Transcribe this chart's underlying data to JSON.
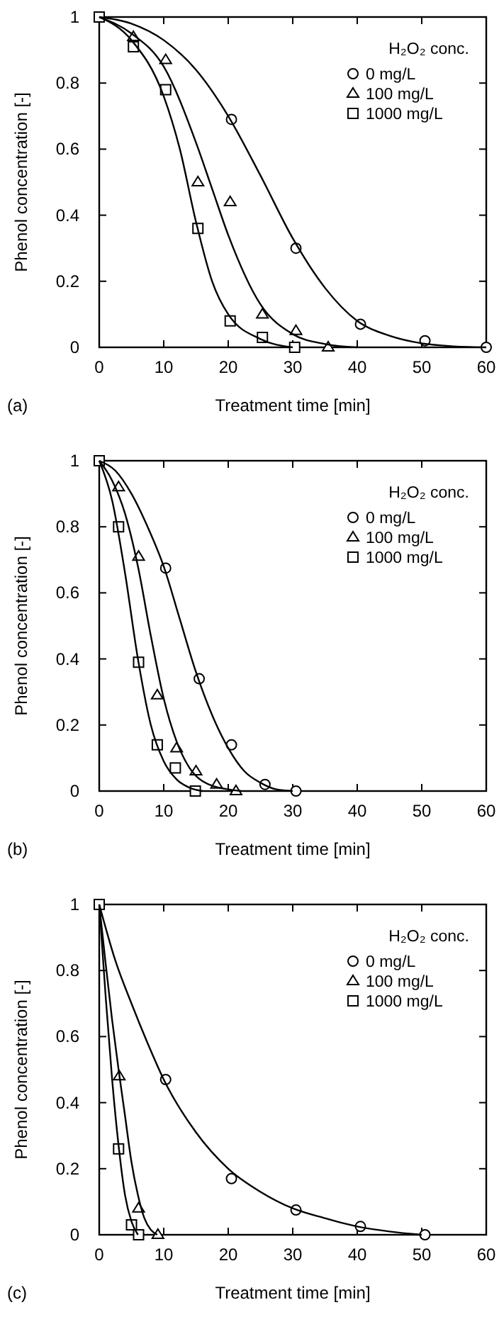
{
  "chart_data": [
    {
      "type": "scatter",
      "xlabel": "Treatment time [min]",
      "ylabel": "Phenol concentration [-]",
      "legend_title": "H₂O₂ conc.",
      "legend": "top right",
      "grid": false,
      "annotations": [
        "(a)"
      ],
      "xlim": [
        0,
        60
      ],
      "ylim": [
        0,
        1
      ],
      "xticks": [
        0,
        10,
        20,
        30,
        40,
        50,
        60
      ],
      "yticks": [
        0,
        0.2,
        0.4,
        0.6,
        0.8,
        1
      ],
      "series": [
        {
          "name": "0 mg/L",
          "type": "scatter",
          "marker": "circle",
          "color": "#000000",
          "x": [
            20.5,
            30.5,
            40.5,
            50.5,
            60
          ],
          "values": [
            0.69,
            0.3,
            0.07,
            0.02,
            0
          ]
        },
        {
          "name": "100 mg/L",
          "type": "scatter",
          "marker": "triangle",
          "color": "#000000",
          "x": [
            5.3,
            10.3,
            15.3,
            20.3,
            25.3,
            30.5,
            35.5
          ],
          "values": [
            0.94,
            0.87,
            0.5,
            0.44,
            0.1,
            0.05,
            0
          ]
        },
        {
          "name": "1000 mg/L",
          "type": "scatter",
          "marker": "square",
          "color": "#000000",
          "x": [
            0,
            5.3,
            10.3,
            15.3,
            20.3,
            25.3,
            30.3
          ],
          "values": [
            1,
            0.91,
            0.78,
            0.36,
            0.08,
            0.03,
            0
          ]
        },
        {
          "type": "line",
          "color": "#000000",
          "x": [
            0,
            5,
            10,
            15,
            20,
            25,
            30,
            35,
            40,
            45,
            50,
            55,
            60
          ],
          "values": [
            1,
            0.98,
            0.93,
            0.84,
            0.7,
            0.52,
            0.33,
            0.18,
            0.08,
            0.035,
            0.012,
            0.003,
            0
          ]
        },
        {
          "type": "line",
          "color": "#000000",
          "x": [
            0,
            5,
            10,
            15,
            17.5,
            20,
            25,
            30,
            35,
            40
          ],
          "values": [
            1,
            0.95,
            0.85,
            0.62,
            0.48,
            0.34,
            0.13,
            0.04,
            0.01,
            0
          ]
        },
        {
          "type": "line",
          "color": "#000000",
          "x": [
            0,
            5,
            10,
            12.5,
            15,
            17.5,
            20,
            25,
            30
          ],
          "values": [
            1,
            0.93,
            0.76,
            0.6,
            0.38,
            0.2,
            0.1,
            0.025,
            0
          ]
        }
      ]
    },
    {
      "type": "scatter",
      "xlabel": "Treatment time [min]",
      "ylabel": "Phenol concentration [-]",
      "legend_title": "H₂O₂ conc.",
      "legend": "top right",
      "grid": false,
      "annotations": [
        "(b)"
      ],
      "xlim": [
        0,
        60
      ],
      "ylim": [
        0,
        1
      ],
      "xticks": [
        0,
        10,
        20,
        30,
        40,
        50,
        60
      ],
      "yticks": [
        0,
        0.2,
        0.4,
        0.6,
        0.8,
        1
      ],
      "series": [
        {
          "name": "0 mg/L",
          "type": "scatter",
          "marker": "circle",
          "color": "#000000",
          "x": [
            10.3,
            15.5,
            20.5,
            25.7,
            30.5
          ],
          "values": [
            0.675,
            0.34,
            0.14,
            0.02,
            0
          ]
        },
        {
          "name": "100 mg/L",
          "type": "scatter",
          "marker": "triangle",
          "color": "#000000",
          "x": [
            3,
            6.1,
            9,
            12,
            15,
            18.2,
            21.2
          ],
          "values": [
            0.92,
            0.71,
            0.29,
            0.13,
            0.06,
            0.02,
            0
          ]
        },
        {
          "name": "1000 mg/L",
          "type": "scatter",
          "marker": "square",
          "color": "#000000",
          "x": [
            0,
            3,
            6.1,
            9,
            11.8,
            14.9
          ],
          "values": [
            1,
            0.8,
            0.39,
            0.14,
            0.07,
            0
          ]
        },
        {
          "type": "line",
          "color": "#000000",
          "x": [
            0,
            2.5,
            5,
            7.5,
            10,
            12.5,
            15,
            17.5,
            20,
            22.5,
            25,
            27.5,
            30
          ],
          "values": [
            1,
            0.97,
            0.9,
            0.8,
            0.68,
            0.52,
            0.36,
            0.23,
            0.13,
            0.06,
            0.025,
            0.005,
            0
          ]
        },
        {
          "type": "line",
          "color": "#000000",
          "x": [
            0,
            2,
            4,
            6,
            8,
            10,
            12,
            14,
            16,
            20,
            22
          ],
          "values": [
            1,
            0.94,
            0.84,
            0.68,
            0.47,
            0.28,
            0.15,
            0.07,
            0.03,
            0.005,
            0
          ]
        },
        {
          "type": "line",
          "color": "#000000",
          "x": [
            0,
            2,
            4,
            6,
            8,
            10,
            12,
            14,
            16
          ],
          "values": [
            1,
            0.88,
            0.66,
            0.4,
            0.2,
            0.09,
            0.035,
            0.01,
            0
          ]
        }
      ]
    },
    {
      "type": "scatter",
      "xlabel": "Treatment time [min]",
      "ylabel": "Phenol concentration [-]",
      "legend_title": "H₂O₂ conc.",
      "legend": "top right",
      "grid": false,
      "annotations": [
        "(c)"
      ],
      "xlim": [
        0,
        60
      ],
      "ylim": [
        0,
        1
      ],
      "xticks": [
        0,
        10,
        20,
        30,
        40,
        50,
        60
      ],
      "yticks": [
        0,
        0.2,
        0.4,
        0.6,
        0.8,
        1
      ],
      "series": [
        {
          "name": "0 mg/L",
          "type": "scatter",
          "marker": "circle",
          "color": "#000000",
          "x": [
            10.3,
            20.5,
            30.5,
            40.5,
            50.5
          ],
          "values": [
            0.47,
            0.17,
            0.075,
            0.025,
            0
          ]
        },
        {
          "name": "100 mg/L",
          "type": "scatter",
          "marker": "triangle",
          "color": "#000000",
          "x": [
            3.1,
            6.1,
            9.1
          ],
          "values": [
            0.48,
            0.08,
            0
          ]
        },
        {
          "name": "1000 mg/L",
          "type": "scatter",
          "marker": "square",
          "color": "#000000",
          "x": [
            0,
            3,
            5,
            6.1
          ],
          "values": [
            1,
            0.26,
            0.03,
            0
          ]
        },
        {
          "type": "line",
          "color": "#000000",
          "x": [
            0,
            2.5,
            5,
            7.5,
            10,
            15,
            20,
            25,
            30,
            35,
            40,
            45,
            50
          ],
          "values": [
            1,
            0.83,
            0.7,
            0.58,
            0.47,
            0.31,
            0.2,
            0.13,
            0.08,
            0.05,
            0.025,
            0.01,
            0
          ]
        },
        {
          "type": "line",
          "color": "#000000",
          "x": [
            0,
            1,
            2,
            3,
            4,
            5,
            6,
            7,
            8,
            9
          ],
          "values": [
            1,
            0.82,
            0.65,
            0.5,
            0.36,
            0.22,
            0.12,
            0.05,
            0.015,
            0
          ]
        },
        {
          "type": "line",
          "color": "#000000",
          "x": [
            0,
            1,
            2,
            3,
            4,
            5,
            6
          ],
          "values": [
            1,
            0.72,
            0.47,
            0.27,
            0.12,
            0.04,
            0
          ]
        }
      ]
    }
  ]
}
